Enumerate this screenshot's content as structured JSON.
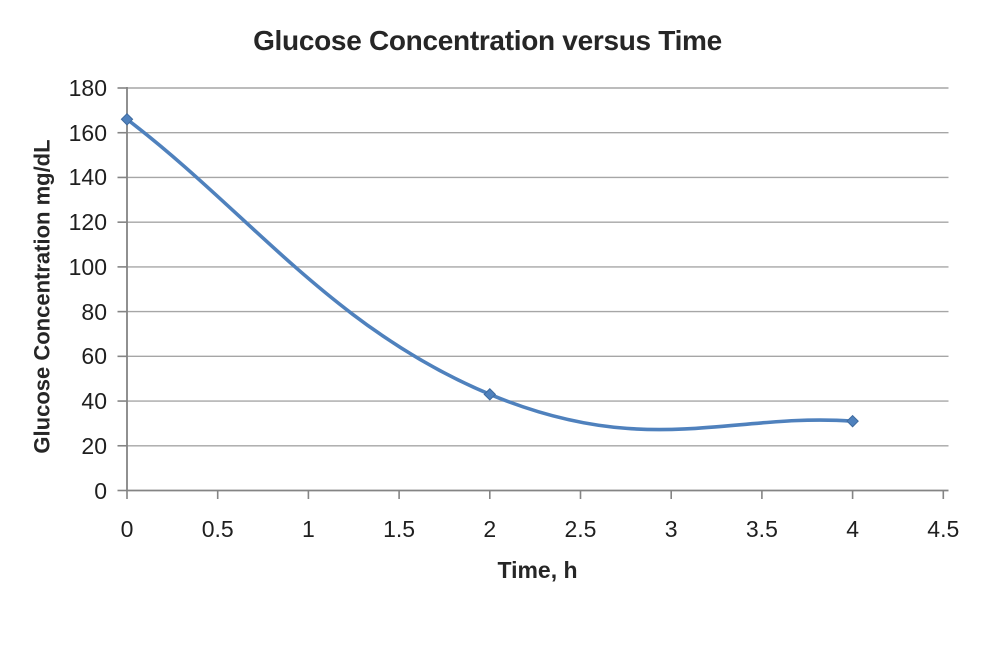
{
  "window": {
    "background": "#FFFFFF"
  },
  "chart_data": {
    "type": "line",
    "title": "Glucose Concentration versus Time",
    "xlabel": "Time, h",
    "ylabel": "Glucose Concentration mg/dL",
    "x": [
      0,
      2,
      4
    ],
    "y": [
      166,
      43,
      31
    ],
    "xlim": [
      0,
      4.5
    ],
    "ylim": [
      0,
      180
    ],
    "x_tick_step": 0.5,
    "y_tick_step": 20,
    "x_tick_labels": [
      "0",
      "0.5",
      "1",
      "1.5",
      "2",
      "2.5",
      "3",
      "3.5",
      "4",
      "4.5"
    ],
    "y_tick_labels": [
      "0",
      "20",
      "40",
      "60",
      "80",
      "100",
      "120",
      "140",
      "160",
      "180"
    ],
    "grid": "horizontal-major",
    "legend": "none",
    "line_smooth": true,
    "marker_shape": "diamond",
    "colors": {
      "line": "#4F81BD",
      "marker_fill": "#4F81BD",
      "marker_edge": "#3E6A9E",
      "gridline": "#A6A6A6",
      "axis": "#848484",
      "tick_text": "#1F1F1F",
      "title_text": "#262626",
      "background": "#FFFFFF"
    }
  }
}
